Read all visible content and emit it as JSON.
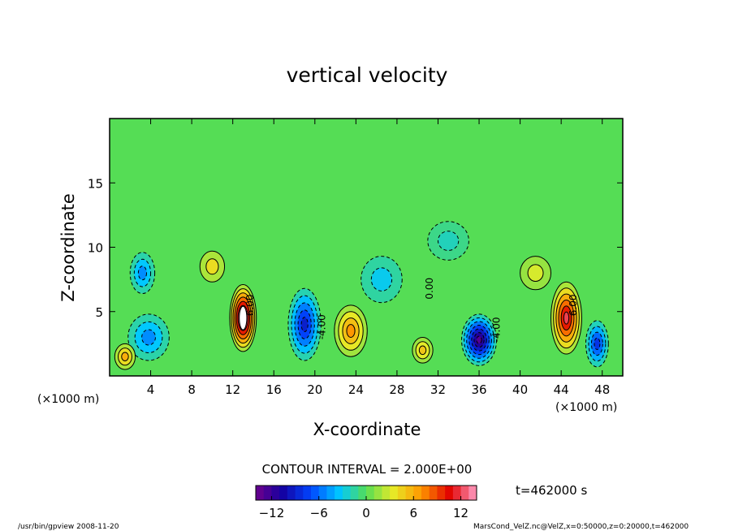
{
  "chart_data": {
    "type": "heatmap",
    "title": "vertical velocity",
    "xlabel": "X-coordinate",
    "ylabel": "Z-coordinate",
    "x_unit_left": "(×1000 m)",
    "x_unit_right": "(×1000 m)",
    "xlim": [
      0,
      50
    ],
    "ylim": [
      0,
      20
    ],
    "xticks": [
      4,
      8,
      12,
      16,
      20,
      24,
      28,
      32,
      36,
      40,
      44,
      48
    ],
    "yticks": [
      5,
      10,
      15
    ],
    "contour_interval_text": "CONTOUR INTERVAL = 2.000E+00",
    "contour_labels": [
      {
        "text": "0.00",
        "x": 31.5,
        "z": 6.8
      },
      {
        "text": "-4.00",
        "x": 21.0,
        "z": 3.8
      },
      {
        "text": "-4.00",
        "x": 38.0,
        "z": 3.6
      },
      {
        "text": "6.00",
        "x": 14.0,
        "z": 5.5
      },
      {
        "text": "6.00",
        "x": 45.5,
        "z": 5.5
      }
    ],
    "colorbar": {
      "range": [
        -14,
        14
      ],
      "ticks": [
        -12,
        -6,
        0,
        6,
        12
      ],
      "tick_labels": [
        "−12",
        "−6",
        "0",
        "6",
        "12"
      ]
    },
    "cells": [
      {
        "x": 13.0,
        "z": 4.5,
        "value": 16,
        "sx": 1.3,
        "sz": 2.6
      },
      {
        "x": 44.5,
        "z": 4.5,
        "value": 12,
        "sx": 1.5,
        "sz": 2.8
      },
      {
        "x": 23.5,
        "z": 3.5,
        "value": 7,
        "sx": 1.6,
        "sz": 2.0
      },
      {
        "x": 36.0,
        "z": 2.8,
        "value": -13,
        "sx": 1.7,
        "sz": 2.0
      },
      {
        "x": 19.0,
        "z": 4.0,
        "value": -9,
        "sx": 1.6,
        "sz": 2.8
      },
      {
        "x": 47.5,
        "z": 2.5,
        "value": -8,
        "sx": 1.1,
        "sz": 1.8
      },
      {
        "x": 3.8,
        "z": 3.0,
        "value": -5,
        "sx": 2.0,
        "sz": 1.8
      },
      {
        "x": 3.2,
        "z": 8.0,
        "value": -5,
        "sx": 1.2,
        "sz": 1.6
      },
      {
        "x": 1.5,
        "z": 1.5,
        "value": 6,
        "sx": 1.0,
        "sz": 1.0
      },
      {
        "x": 30.5,
        "z": 2.0,
        "value": 5,
        "sx": 1.0,
        "sz": 1.0
      },
      {
        "x": 10.0,
        "z": 8.5,
        "value": 4,
        "sx": 1.2,
        "sz": 1.2
      },
      {
        "x": 41.5,
        "z": 8.0,
        "value": 3,
        "sx": 1.5,
        "sz": 1.3
      },
      {
        "x": 26.5,
        "z": 7.5,
        "value": -3,
        "sx": 2.0,
        "sz": 1.8
      },
      {
        "x": 33.0,
        "z": 10.5,
        "value": -2,
        "sx": 2.0,
        "sz": 1.5
      }
    ]
  },
  "legend": {
    "time": "t=462000 s"
  },
  "footer": {
    "left": "/usr/bin/gpview  2008-11-20",
    "right": "MarsCond_VelZ.nc@VelZ,x=0:50000,z=0:20000,t=462000"
  }
}
